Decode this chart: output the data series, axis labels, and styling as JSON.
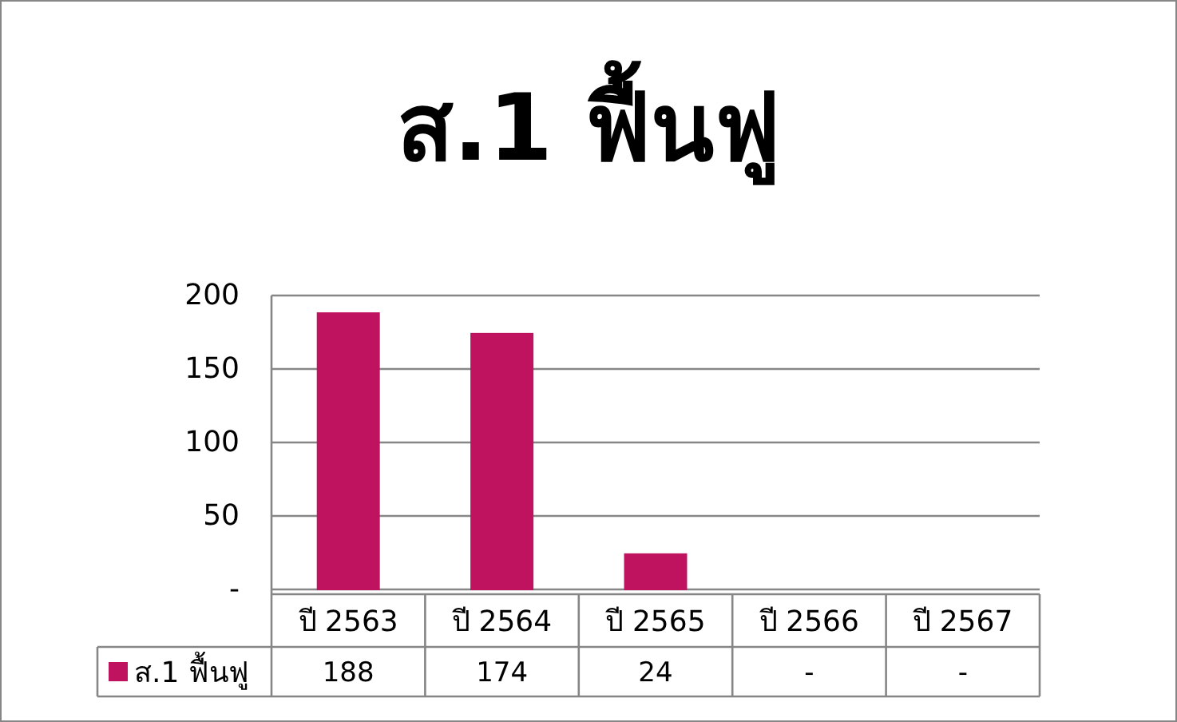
{
  "chart_data": {
    "type": "bar",
    "title": "ส.1 ฟื้นฟู",
    "categories": [
      "ปี 2563",
      "ปี 2564",
      "ปี 2565",
      "ปี 2566",
      "ปี 2567"
    ],
    "series": [
      {
        "name": "ส.1 ฟื้นฟู",
        "color": "#c0135f",
        "values": [
          188,
          174,
          24,
          0,
          0
        ],
        "value_labels": [
          "188",
          "174",
          "24",
          "-",
          "-"
        ]
      }
    ],
    "ylim": [
      0,
      200
    ],
    "yticks": [
      {
        "value": 0,
        "label": "-"
      },
      50,
      100,
      150,
      200
    ],
    "grid": "y",
    "legend": "bottom left"
  }
}
